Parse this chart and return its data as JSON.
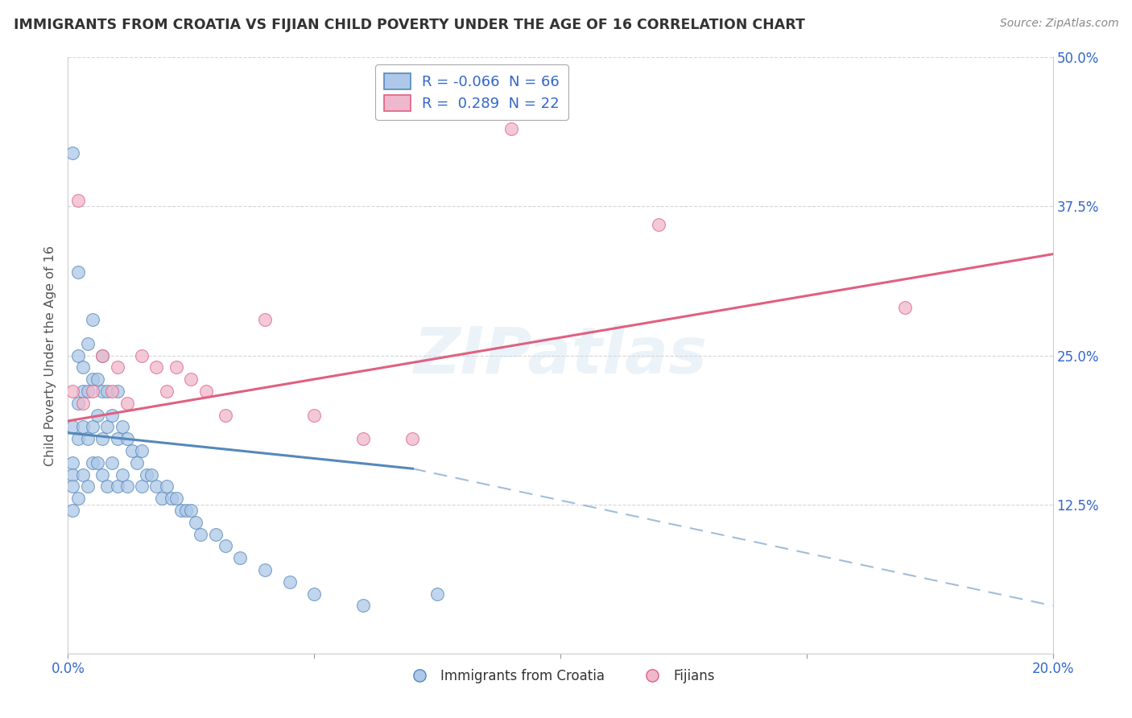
{
  "title": "IMMIGRANTS FROM CROATIA VS FIJIAN CHILD POVERTY UNDER THE AGE OF 16 CORRELATION CHART",
  "source": "Source: ZipAtlas.com",
  "ylabel": "Child Poverty Under the Age of 16",
  "legend_label_1": "Immigrants from Croatia",
  "legend_label_2": "Fijians",
  "r1": -0.066,
  "n1": 66,
  "r2": 0.289,
  "n2": 22,
  "color1": "#adc8e8",
  "color2": "#f0b8cc",
  "trend1_color": "#5588bb",
  "trend2_color": "#e06080",
  "xlim": [
    0.0,
    0.2
  ],
  "ylim": [
    0.0,
    0.5
  ],
  "background_color": "#ffffff",
  "croatia_x": [
    0.001,
    0.001,
    0.001,
    0.001,
    0.001,
    0.001,
    0.002,
    0.002,
    0.002,
    0.002,
    0.002,
    0.003,
    0.003,
    0.003,
    0.003,
    0.004,
    0.004,
    0.004,
    0.004,
    0.005,
    0.005,
    0.005,
    0.005,
    0.006,
    0.006,
    0.006,
    0.007,
    0.007,
    0.007,
    0.007,
    0.008,
    0.008,
    0.008,
    0.009,
    0.009,
    0.01,
    0.01,
    0.01,
    0.011,
    0.011,
    0.012,
    0.012,
    0.013,
    0.014,
    0.015,
    0.015,
    0.016,
    0.017,
    0.018,
    0.019,
    0.02,
    0.021,
    0.022,
    0.023,
    0.024,
    0.025,
    0.026,
    0.027,
    0.03,
    0.032,
    0.035,
    0.04,
    0.045,
    0.05,
    0.06,
    0.075
  ],
  "croatia_y": [
    0.42,
    0.19,
    0.16,
    0.15,
    0.14,
    0.12,
    0.32,
    0.25,
    0.21,
    0.18,
    0.13,
    0.24,
    0.22,
    0.19,
    0.15,
    0.26,
    0.22,
    0.18,
    0.14,
    0.28,
    0.23,
    0.19,
    0.16,
    0.23,
    0.2,
    0.16,
    0.25,
    0.22,
    0.18,
    0.15,
    0.22,
    0.19,
    0.14,
    0.2,
    0.16,
    0.22,
    0.18,
    0.14,
    0.19,
    0.15,
    0.18,
    0.14,
    0.17,
    0.16,
    0.17,
    0.14,
    0.15,
    0.15,
    0.14,
    0.13,
    0.14,
    0.13,
    0.13,
    0.12,
    0.12,
    0.12,
    0.11,
    0.1,
    0.1,
    0.09,
    0.08,
    0.07,
    0.06,
    0.05,
    0.04,
    0.05
  ],
  "fijian_x": [
    0.001,
    0.002,
    0.003,
    0.005,
    0.007,
    0.009,
    0.01,
    0.012,
    0.015,
    0.018,
    0.02,
    0.022,
    0.025,
    0.028,
    0.032,
    0.04,
    0.05,
    0.06,
    0.07,
    0.09,
    0.12,
    0.17
  ],
  "fijian_y": [
    0.22,
    0.38,
    0.21,
    0.22,
    0.25,
    0.22,
    0.24,
    0.21,
    0.25,
    0.24,
    0.22,
    0.24,
    0.23,
    0.22,
    0.2,
    0.28,
    0.2,
    0.18,
    0.18,
    0.44,
    0.36,
    0.29
  ],
  "trend1_x0": 0.0,
  "trend1_y0": 0.185,
  "trend1_x1": 0.07,
  "trend1_y1": 0.155,
  "trend1_dash_x0": 0.07,
  "trend1_dash_y0": 0.155,
  "trend1_dash_x1": 0.2,
  "trend1_dash_y1": 0.04,
  "trend2_x0": 0.0,
  "trend2_y0": 0.195,
  "trend2_x1": 0.2,
  "trend2_y1": 0.335
}
